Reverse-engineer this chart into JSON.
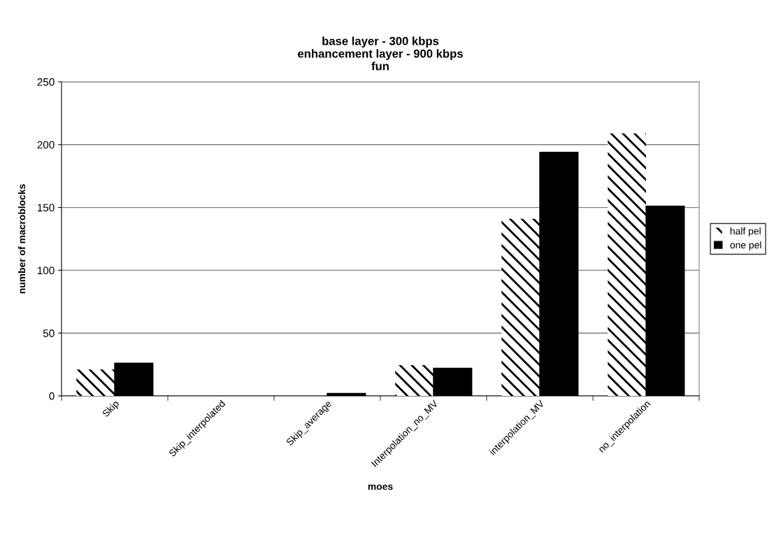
{
  "chart_data": {
    "type": "bar",
    "title": "base layer - 300 kbps\nenhancement layer - 900 kbps\nfun",
    "xlabel": "moes",
    "ylabel": "number of macroblocks",
    "categories": [
      "Skip",
      "Skip_interpolated",
      "Skip_average",
      "Interpolation_no_MV",
      "interpolation_MV",
      "no_interpolation"
    ],
    "series": [
      {
        "name": "half pel",
        "color": "#ffffff",
        "values": [
          21,
          0,
          0,
          24.5,
          141,
          209
        ]
      },
      {
        "name": "one pel",
        "color": "#000000",
        "values": [
          26,
          0,
          2,
          22,
          194,
          151
        ]
      }
    ],
    "ylim": [
      0,
      250
    ],
    "yticks": [
      0,
      50,
      100,
      150,
      200,
      250
    ],
    "grid": "y",
    "legend": "right"
  }
}
